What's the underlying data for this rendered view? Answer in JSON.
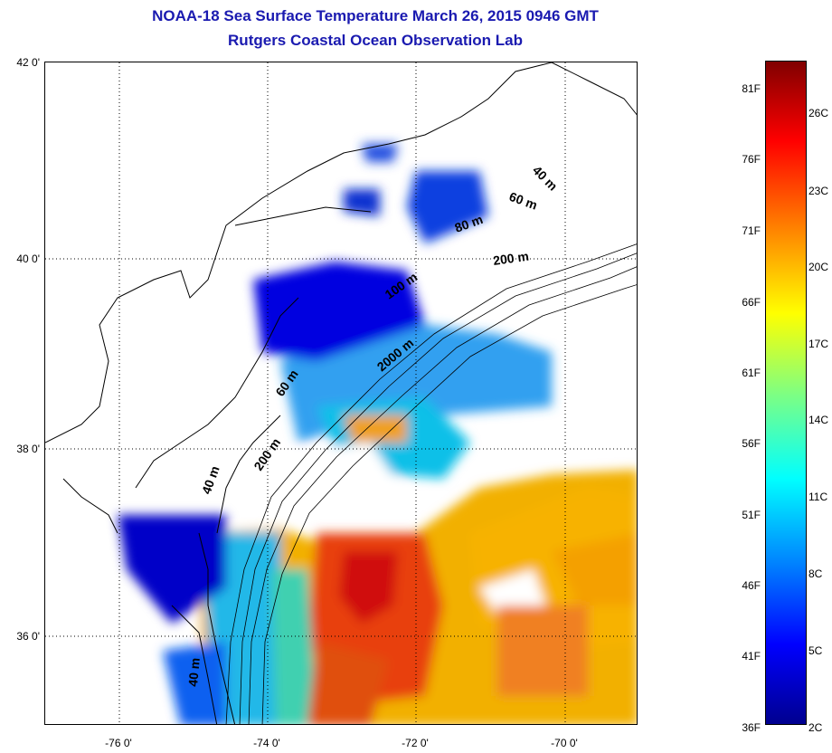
{
  "title": {
    "line1": "NOAA-18 Sea Surface Temperature March 26, 2015 0946 GMT",
    "line2": "Rutgers Coastal Ocean Observation Lab"
  },
  "axes": {
    "lat_labels": [
      "42 0'",
      "40 0'",
      "38 0'",
      "36 0'"
    ],
    "lon_labels": [
      "-76 0'",
      "-74 0'",
      "-72 0'",
      "-70 0'"
    ],
    "grid": "dotted"
  },
  "contours": [
    "40 m",
    "60 m",
    "80 m",
    "200 m",
    "100 m",
    "2000 m",
    "60 m",
    "200 m",
    "40 m",
    "40 m"
  ],
  "colorbar": {
    "fahrenheit_labels": [
      "81F",
      "76F",
      "71F",
      "66F",
      "61F",
      "56F",
      "51F",
      "46F",
      "41F",
      "36F"
    ],
    "celsius_labels": [
      "26C",
      "23C",
      "20C",
      "17C",
      "14C",
      "11C",
      "8C",
      "5C",
      "2C"
    ],
    "colormap": [
      "#00008f",
      "#0000ff",
      "#0080ff",
      "#00ffff",
      "#80ff80",
      "#ffff00",
      "#ff8000",
      "#ff0000",
      "#800000"
    ]
  }
}
